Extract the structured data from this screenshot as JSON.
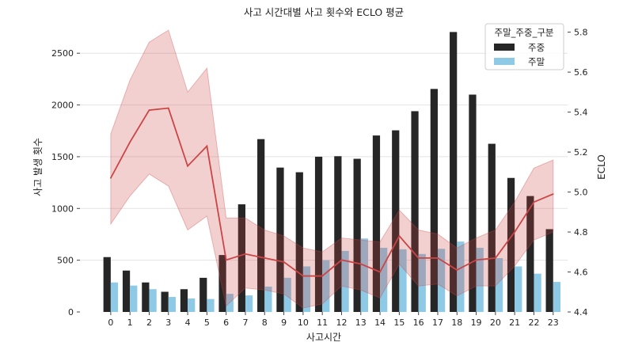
{
  "chart_data": {
    "type": "bar",
    "title": "사고 시간대별 사고 횟수와 ECLO 평균",
    "xlabel": "사고시간",
    "ylabel": "사고 발생 횟수",
    "y2label": "ECLO",
    "categories": [
      "0",
      "1",
      "2",
      "3",
      "4",
      "5",
      "6",
      "7",
      "8",
      "9",
      "10",
      "11",
      "12",
      "13",
      "14",
      "15",
      "16",
      "17",
      "18",
      "19",
      "20",
      "21",
      "22",
      "23"
    ],
    "ylim": [
      0,
      2800
    ],
    "yticks": [
      0,
      500,
      1000,
      1500,
      2000,
      2500
    ],
    "y2lim": [
      4.4,
      5.85
    ],
    "y2ticks": [
      4.4,
      4.6,
      4.8,
      5.0,
      5.2,
      5.4,
      5.6,
      5.8
    ],
    "grid": true,
    "legend": {
      "title": "주말_주중_구분",
      "placement": "top-right",
      "entries": [
        "주중",
        "주말"
      ]
    },
    "series": [
      {
        "name": "주중",
        "color": "#262626",
        "values": [
          530,
          400,
          285,
          195,
          220,
          330,
          550,
          1040,
          1670,
          1395,
          1350,
          1500,
          1505,
          1480,
          1705,
          1755,
          1940,
          2155,
          2705,
          2100,
          1625,
          1295,
          1120,
          800
        ]
      },
      {
        "name": "주말",
        "color": "#8ecae6",
        "values": [
          285,
          255,
          220,
          145,
          130,
          125,
          175,
          160,
          245,
          330,
          440,
          500,
          590,
          710,
          620,
          605,
          560,
          610,
          680,
          620,
          520,
          440,
          370,
          290
        ]
      }
    ],
    "line": {
      "axis": "right",
      "color": "#cc4444",
      "band_color": "#cc4444",
      "values": [
        5.07,
        5.25,
        5.41,
        5.42,
        5.13,
        5.23,
        4.66,
        4.69,
        4.67,
        4.65,
        4.58,
        4.58,
        4.66,
        4.64,
        4.6,
        4.78,
        4.67,
        4.67,
        4.61,
        4.66,
        4.67,
        4.8,
        4.95,
        4.99
      ],
      "upper": [
        5.29,
        5.56,
        5.75,
        5.81,
        5.5,
        5.62,
        4.87,
        4.87,
        4.81,
        4.78,
        4.72,
        4.7,
        4.77,
        4.76,
        4.75,
        4.91,
        4.81,
        4.79,
        4.72,
        4.77,
        4.81,
        4.95,
        5.12,
        5.16
      ],
      "lower": [
        4.84,
        4.98,
        5.09,
        5.03,
        4.81,
        4.88,
        4.43,
        4.52,
        4.51,
        4.49,
        4.42,
        4.44,
        4.53,
        4.51,
        4.47,
        4.64,
        4.53,
        4.54,
        4.48,
        4.53,
        4.53,
        4.63,
        4.76,
        4.8
      ]
    }
  }
}
